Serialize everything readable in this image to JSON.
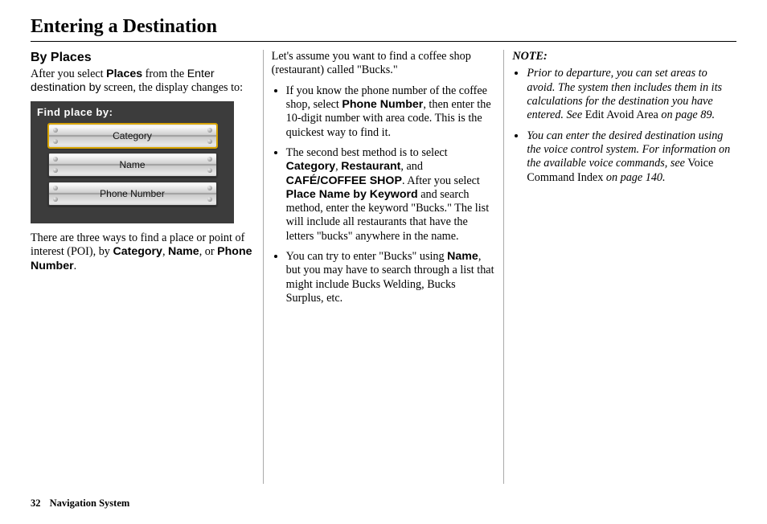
{
  "page": {
    "title": "Entering a Destination",
    "footer_page": "32",
    "footer_label": "Navigation System"
  },
  "col1": {
    "heading": "By Places",
    "intro_a": "After you select ",
    "intro_places": "Places",
    "intro_b": " from the ",
    "intro_enter": "Enter destination by",
    "intro_c": " screen, the display changes to:",
    "panel_header": "Find place by:",
    "btn1": "Category",
    "btn2": "Name",
    "btn3": "Phone Number",
    "outro_a": "There are three ways to find a place or point of interest (POI), by ",
    "outro_cat": "Category",
    "outro_sep1": ", ",
    "outro_name": "Name",
    "outro_sep2": ", or ",
    "outro_phone": "Phone Number",
    "outro_end": "."
  },
  "col2": {
    "lead": "Let's assume you want to find a coffee shop (restaurant) called \"Bucks.\"",
    "b1_a": "If you know the phone number of the coffee shop, select ",
    "b1_phone": "Phone Number",
    "b1_b": ", then enter the 10-digit number with area code. This is the quickest way to find it.",
    "b2_a": "The second best method is to select ",
    "b2_cat": "Category",
    "b2_s1": ", ",
    "b2_rest": "Restaurant",
    "b2_s2": ", and ",
    "b2_cafe": "CAFÉ/COFFEE SHOP",
    "b2_b": ". After you select ",
    "b2_pk": "Place Name by Keyword",
    "b2_c": " and search method, enter the keyword \"Bucks.\" The list will include all restaurants that have the letters \"bucks\" anywhere in the name.",
    "b3_a": "You can try to enter \"Bucks\" using ",
    "b3_name": "Name",
    "b3_b": ", but you may have to search through a list that might include Bucks Welding, Bucks Surplus, etc."
  },
  "col3": {
    "note": "NOTE:",
    "n1_a": "Prior to departure, you can set areas to avoid. The system then includes them in its calculations for the destination you have entered. See",
    "n1_link": " Edit Avoid Area ",
    "n1_b": "on page 89.",
    "n2_a": "You can enter the desired destination using the voice control system. For information on the available voice commands, see",
    "n2_link": " Voice Command Index ",
    "n2_b": "on page 140."
  }
}
